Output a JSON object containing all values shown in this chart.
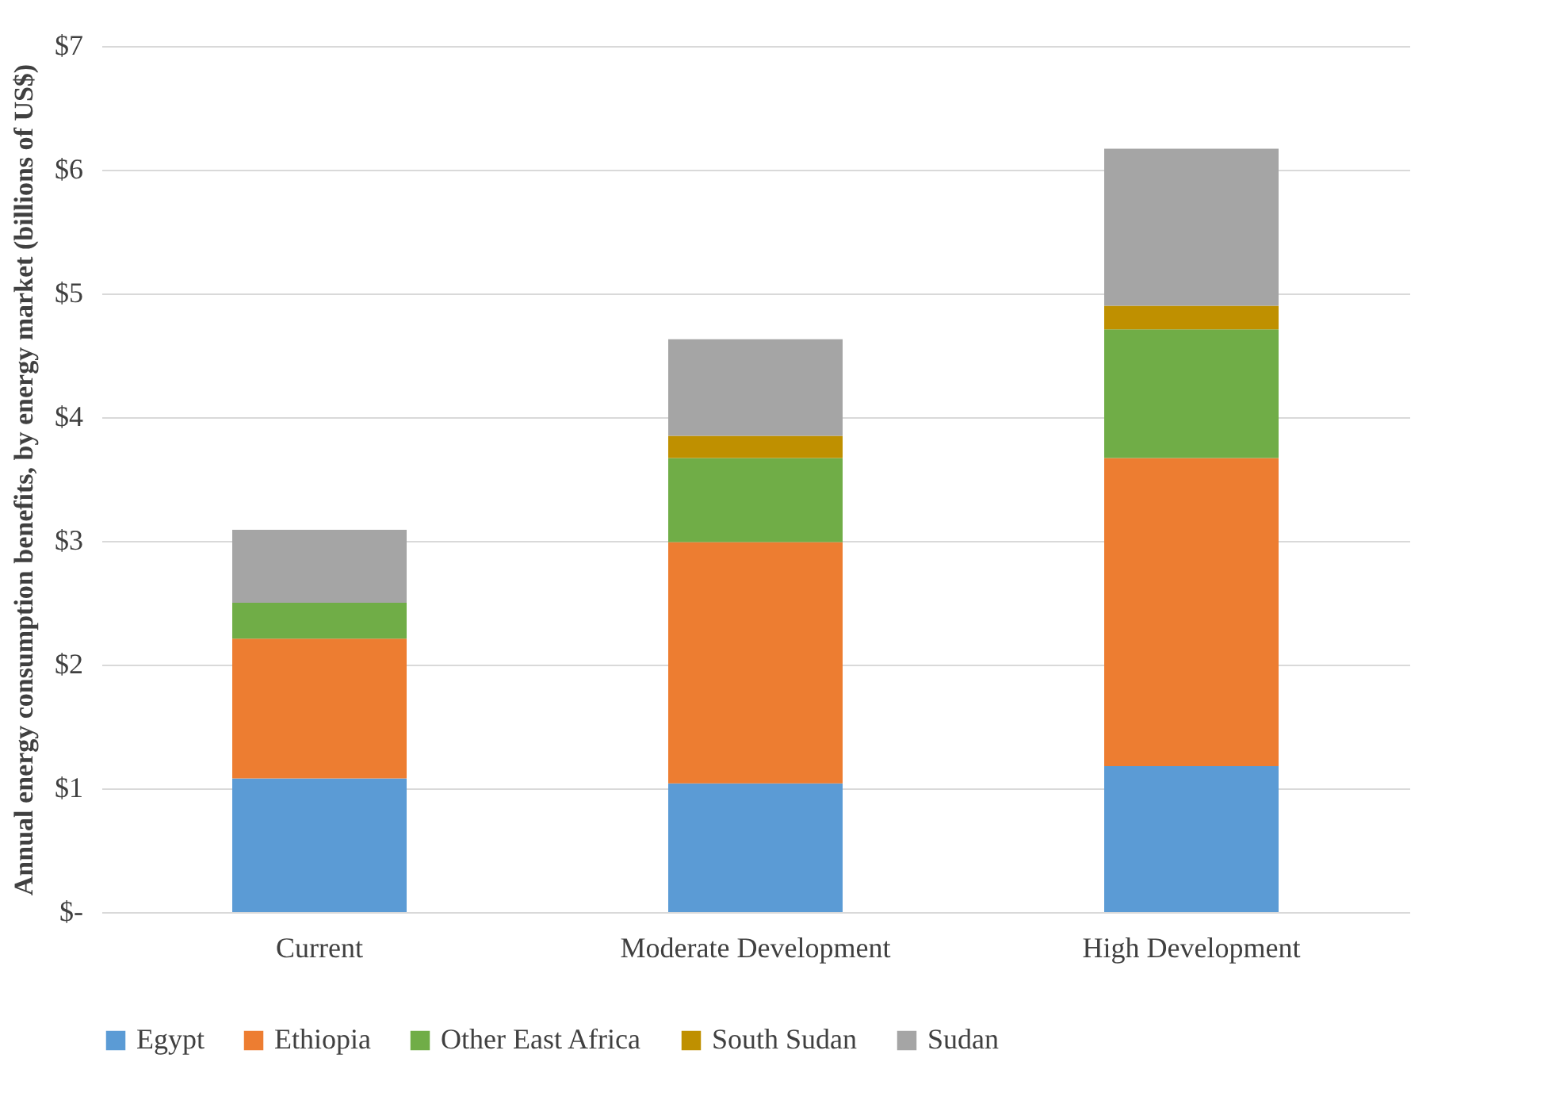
{
  "chart_data": {
    "type": "bar",
    "stacked": true,
    "ylabel": "Annual energy consumption benefits, by energy market (billions of US$)",
    "categories": [
      "Current",
      "Moderate Development",
      "High Development"
    ],
    "series": [
      {
        "name": "Egypt",
        "color": "#5b9bd5",
        "values": [
          1.08,
          1.04,
          1.18
        ]
      },
      {
        "name": "Ethiopia",
        "color": "#ed7d31",
        "values": [
          1.13,
          1.95,
          2.49
        ]
      },
      {
        "name": "Other East Africa",
        "color": "#70ad47",
        "values": [
          0.29,
          0.68,
          1.04
        ]
      },
      {
        "name": "South Sudan",
        "color": "#bf9000",
        "values": [
          0,
          0.18,
          0.19
        ]
      },
      {
        "name": "Sudan",
        "color": "#a5a5a5",
        "values": [
          0.59,
          0.78,
          1.27
        ]
      }
    ],
    "ylim": [
      0,
      7
    ],
    "yticks": [
      {
        "value": 0,
        "label": "$-"
      },
      {
        "value": 1,
        "label": "$1"
      },
      {
        "value": 2,
        "label": "$2"
      },
      {
        "value": 3,
        "label": "$3"
      },
      {
        "value": 4,
        "label": "$4"
      },
      {
        "value": 5,
        "label": "$5"
      },
      {
        "value": 6,
        "label": "$6"
      },
      {
        "value": 7,
        "label": "$7"
      }
    ],
    "grid": "y",
    "legend": "bottom"
  }
}
